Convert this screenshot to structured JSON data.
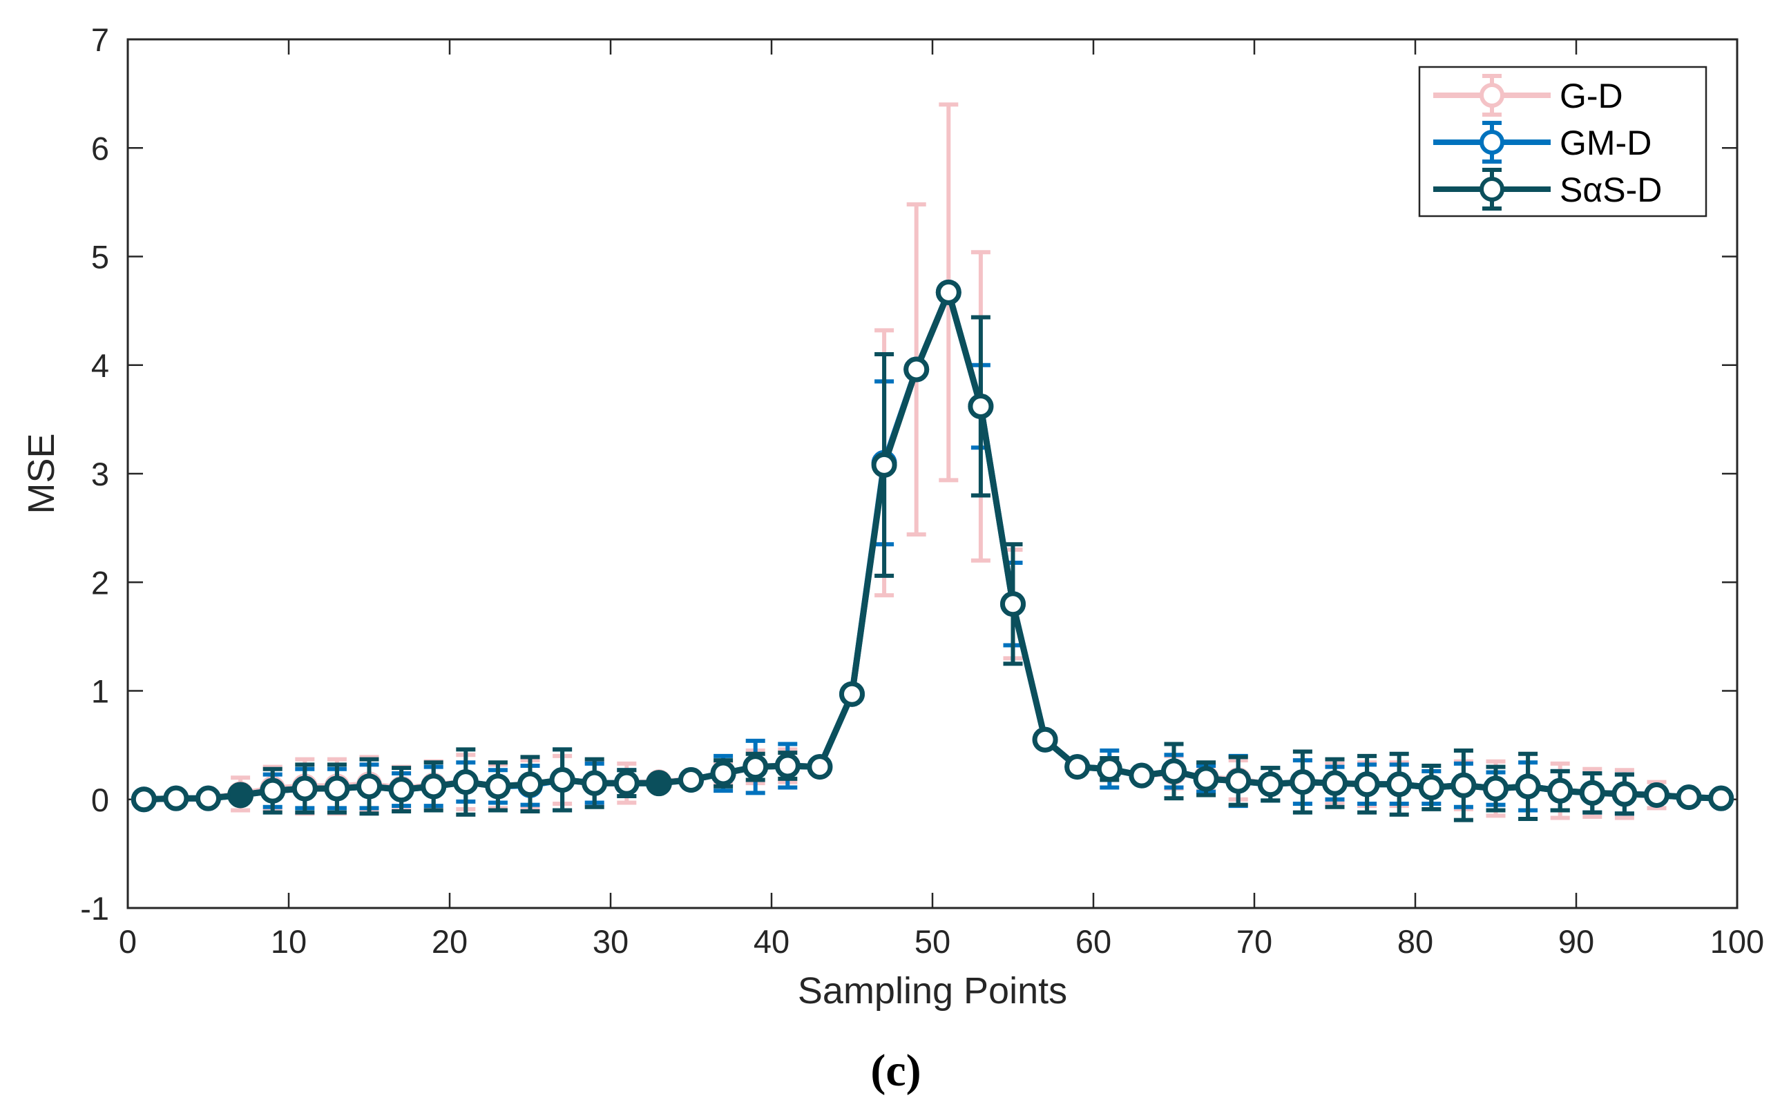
{
  "chart_data": {
    "type": "line",
    "title": "",
    "xlabel": "Sampling Points",
    "ylabel": "MSE",
    "xlim": [
      0,
      100
    ],
    "ylim": [
      -1,
      7
    ],
    "xticks": [
      0,
      10,
      20,
      30,
      40,
      50,
      60,
      70,
      80,
      90,
      100
    ],
    "yticks": [
      -1,
      0,
      1,
      2,
      3,
      4,
      5,
      6,
      7
    ],
    "caption": "(c)",
    "legend_position": "top-right",
    "x": [
      1,
      3,
      5,
      7,
      9,
      11,
      13,
      15,
      17,
      19,
      21,
      23,
      25,
      27,
      29,
      31,
      33,
      35,
      37,
      39,
      41,
      43,
      45,
      47,
      49,
      51,
      53,
      55,
      57,
      59,
      61,
      63,
      65,
      67,
      69,
      71,
      73,
      75,
      77,
      79,
      81,
      83,
      85,
      87,
      89,
      91,
      93,
      95,
      97,
      99
    ],
    "series": [
      {
        "name": "G-D",
        "color": "#F4C2C6",
        "values": [
          0,
          0.01,
          0.01,
          0.05,
          0.1,
          0.12,
          0.12,
          0.14,
          0.1,
          0.13,
          0.16,
          0.12,
          0.14,
          0.18,
          0.15,
          0.15,
          0.16,
          0.18,
          0.24,
          0.3,
          0.31,
          0.3,
          0.97,
          3.1,
          3.96,
          4.67,
          3.62,
          1.8,
          0.55,
          0.3,
          0.28,
          0.22,
          0.25,
          0.2,
          0.18,
          0.14,
          0.16,
          0.15,
          0.14,
          0.14,
          0.11,
          0.13,
          0.1,
          0.12,
          0.08,
          0.06,
          0.05,
          0.04,
          0.02,
          0.01
        ],
        "errors": [
          0,
          0.02,
          0.02,
          0.15,
          0.2,
          0.25,
          0.25,
          0.25,
          0.2,
          0.22,
          0.25,
          0.2,
          0.22,
          0.22,
          0.2,
          0.18,
          0.05,
          0.05,
          0.1,
          0.15,
          0.15,
          0.05,
          0.05,
          1.22,
          1.52,
          1.73,
          1.42,
          0.5,
          0.05,
          0.05,
          0.1,
          0.05,
          0.15,
          0.12,
          0.18,
          0.15,
          0.2,
          0.18,
          0.2,
          0.2,
          0.15,
          0.22,
          0.25,
          0.3,
          0.25,
          0.22,
          0.22,
          0.12,
          0.05,
          0.02
        ]
      },
      {
        "name": "GM-D",
        "color": "#0072BD",
        "values": [
          0,
          0.01,
          0.01,
          0.04,
          0.08,
          0.1,
          0.1,
          0.12,
          0.09,
          0.12,
          0.16,
          0.12,
          0.13,
          0.18,
          0.15,
          0.15,
          0.15,
          0.18,
          0.24,
          0.3,
          0.31,
          0.3,
          0.97,
          3.1,
          3.96,
          4.67,
          3.62,
          1.8,
          0.55,
          0.3,
          0.28,
          0.22,
          0.26,
          0.19,
          0.17,
          0.14,
          0.16,
          0.15,
          0.14,
          0.14,
          0.11,
          0.13,
          0.1,
          0.12,
          0.08,
          0.06,
          0.05,
          0.04,
          0.02,
          0.01
        ],
        "errors": [
          0,
          0.01,
          0.01,
          0.05,
          0.15,
          0.18,
          0.18,
          0.2,
          0.15,
          0.18,
          0.18,
          0.15,
          0.18,
          0.28,
          0.18,
          0.12,
          0.04,
          0.04,
          0.16,
          0.24,
          0.2,
          0.04,
          0.05,
          0.75,
          0.05,
          0.05,
          0.38,
          0.38,
          0.05,
          0.05,
          0.17,
          0.04,
          0.15,
          0.12,
          0.23,
          0.15,
          0.2,
          0.15,
          0.18,
          0.18,
          0.15,
          0.2,
          0.15,
          0.22,
          0.18,
          0.18,
          0.18,
          0.05,
          0.03,
          0.02
        ]
      },
      {
        "name": "SαS-D",
        "color": "#0B4F5C",
        "values": [
          0,
          0.01,
          0.01,
          0.04,
          0.08,
          0.1,
          0.1,
          0.12,
          0.09,
          0.12,
          0.16,
          0.12,
          0.14,
          0.18,
          0.15,
          0.15,
          0.15,
          0.18,
          0.24,
          0.3,
          0.31,
          0.3,
          0.97,
          3.08,
          3.96,
          4.67,
          3.62,
          1.8,
          0.55,
          0.3,
          0.28,
          0.22,
          0.26,
          0.19,
          0.17,
          0.14,
          0.16,
          0.15,
          0.14,
          0.14,
          0.11,
          0.13,
          0.1,
          0.12,
          0.08,
          0.06,
          0.05,
          0.04,
          0.02,
          0.01
        ],
        "errors": [
          0,
          0.01,
          0.01,
          0.05,
          0.2,
          0.22,
          0.22,
          0.25,
          0.2,
          0.22,
          0.3,
          0.22,
          0.25,
          0.28,
          0.22,
          0.12,
          0.04,
          0.04,
          0.12,
          0.12,
          0.12,
          0.04,
          0.05,
          1.02,
          0.05,
          0.05,
          0.82,
          0.55,
          0.05,
          0.05,
          0.1,
          0.04,
          0.25,
          0.15,
          0.22,
          0.15,
          0.28,
          0.22,
          0.26,
          0.28,
          0.2,
          0.32,
          0.2,
          0.3,
          0.18,
          0.18,
          0.18,
          0.05,
          0.03,
          0.02
        ]
      }
    ]
  }
}
